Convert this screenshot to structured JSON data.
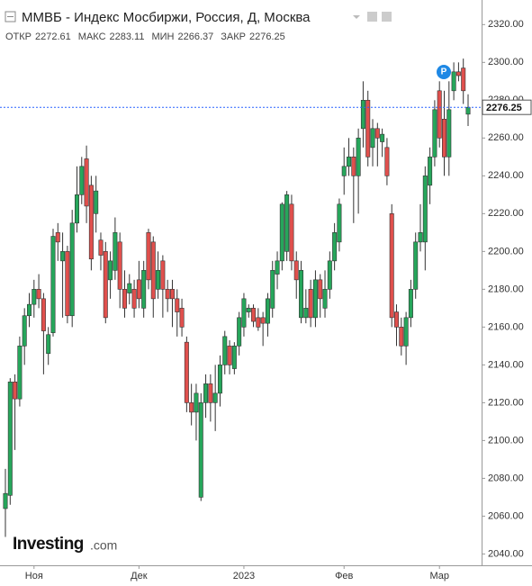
{
  "chart_data": {
    "type": "candlestick",
    "title": "ММВБ - Индекс Мосбиржи, Россия, Д, Москва",
    "header_labels": [
      "ОТКР",
      "МАКС",
      "МИН",
      "ЗАКР"
    ],
    "brand": "Investing",
    "brand_suffix": ".com",
    "up_color": "#26a65b",
    "down_color": "#e0504d",
    "categories": [
      null,
      null,
      null,
      null,
      null,
      null,
      "Ноя",
      null,
      null,
      null,
      null,
      null,
      null,
      null,
      null,
      null,
      null,
      null,
      null,
      null,
      null,
      null,
      null,
      null,
      null,
      null,
      null,
      null,
      "Дек",
      null,
      null,
      null,
      null,
      null,
      null,
      null,
      null,
      null,
      null,
      null,
      null,
      null,
      null,
      null,
      null,
      null,
      null,
      null,
      null,
      null,
      "2023",
      null,
      null,
      null,
      null,
      null,
      null,
      null,
      null,
      null,
      null,
      null,
      null,
      null,
      null,
      null,
      null,
      null,
      null,
      null,
      null,
      "Фев",
      null,
      null,
      null,
      null,
      null,
      null,
      null,
      null,
      null,
      null,
      null,
      null,
      null,
      null,
      null,
      null,
      null,
      null,
      null,
      "Мар",
      null,
      null,
      null,
      null,
      null,
      null
    ],
    "open": [
      2064,
      2071,
      2131,
      2122,
      2150,
      2166,
      2172,
      2180,
      2175,
      2146,
      2157,
      2210,
      2195,
      2200,
      2166,
      2215,
      2230,
      2249,
      2235,
      2220,
      2206,
      2200,
      2185,
      2190,
      2205,
      2180,
      2178,
      2180,
      2185,
      2170,
      2210,
      2205,
      2180,
      2195,
      2180,
      2180,
      2175,
      2170,
      2152,
      2120,
      2115,
      2070,
      2120,
      2130,
      2120,
      2125,
      2140,
      2150,
      2138,
      2150,
      2160,
      2168,
      2170,
      2165,
      2165,
      2162,
      2170,
      2188,
      2195,
      2200,
      2225,
      2195,
      2165,
      2165,
      2180,
      2165,
      2185,
      2170,
      2180,
      2195,
      2205,
      2240,
      2245,
      2250,
      2240,
      2265,
      2280,
      2255,
      2265,
      2258,
      2255,
      2220,
      2168,
      2160,
      2150,
      2165,
      2180,
      2205,
      2205,
      2235,
      2250,
      2285,
      2270,
      2250,
      2285,
      2295,
      2297,
      2272.61
    ],
    "high": [
      2085,
      2133,
      2135,
      2155,
      2170,
      2178,
      2185,
      2188,
      2178,
      2160,
      2212,
      2215,
      2210,
      2203,
      2222,
      2245,
      2250,
      2256,
      2240,
      2240,
      2210,
      2205,
      2200,
      2218,
      2210,
      2190,
      2188,
      2185,
      2195,
      2195,
      2212,
      2208,
      2200,
      2198,
      2185,
      2185,
      2180,
      2175,
      2155,
      2130,
      2130,
      2125,
      2135,
      2135,
      2140,
      2145,
      2158,
      2153,
      2152,
      2168,
      2178,
      2172,
      2172,
      2170,
      2168,
      2178,
      2195,
      2200,
      2226,
      2232,
      2230,
      2200,
      2195,
      2180,
      2185,
      2190,
      2188,
      2190,
      2200,
      2215,
      2228,
      2255,
      2260,
      2255,
      2265,
      2290,
      2285,
      2270,
      2268,
      2265,
      2260,
      2225,
      2172,
      2165,
      2168,
      2185,
      2210,
      2225,
      2245,
      2255,
      2280,
      2290,
      2285,
      2290,
      2300,
      2300,
      2302,
      2283.11
    ],
    "low": [
      2049,
      2066,
      2095,
      2118,
      2140,
      2160,
      2165,
      2170,
      2135,
      2140,
      2155,
      2195,
      2165,
      2162,
      2160,
      2210,
      2225,
      2215,
      2190,
      2210,
      2190,
      2162,
      2175,
      2185,
      2170,
      2165,
      2172,
      2165,
      2170,
      2165,
      2180,
      2165,
      2175,
      2165,
      2168,
      2160,
      2155,
      2155,
      2115,
      2108,
      2100,
      2068,
      2112,
      2110,
      2105,
      2118,
      2135,
      2135,
      2135,
      2145,
      2155,
      2165,
      2160,
      2158,
      2150,
      2155,
      2165,
      2180,
      2190,
      2195,
      2190,
      2175,
      2162,
      2162,
      2160,
      2160,
      2165,
      2165,
      2175,
      2190,
      2200,
      2230,
      2240,
      2215,
      2220,
      2255,
      2245,
      2245,
      2245,
      2250,
      2235,
      2160,
      2150,
      2145,
      2140,
      2160,
      2175,
      2200,
      2190,
      2225,
      2245,
      2255,
      2240,
      2240,
      2280,
      2290,
      2278,
      2266.37
    ],
    "close": [
      2072,
      2131,
      2122,
      2150,
      2166,
      2172,
      2180,
      2175,
      2158,
      2156,
      2208,
      2205,
      2200,
      2166,
      2215,
      2230,
      2245,
      2224,
      2196,
      2232,
      2198,
      2165,
      2195,
      2210,
      2180,
      2170,
      2183,
      2170,
      2175,
      2190,
      2185,
      2175,
      2190,
      2180,
      2175,
      2175,
      2168,
      2160,
      2120,
      2115,
      2125,
      2120,
      2130,
      2120,
      2125,
      2140,
      2155,
      2140,
      2150,
      2165,
      2175,
      2170,
      2163,
      2160,
      2162,
      2175,
      2190,
      2195,
      2225,
      2230,
      2195,
      2185,
      2190,
      2170,
      2165,
      2185,
      2175,
      2180,
      2195,
      2210,
      2225,
      2245,
      2250,
      2240,
      2260,
      2280,
      2250,
      2265,
      2260,
      2262,
      2240,
      2165,
      2160,
      2150,
      2165,
      2180,
      2205,
      2210,
      2240,
      2250,
      2275,
      2260,
      2250,
      2275,
      2295,
      2293,
      2285,
      2276.25
    ],
    "ylim": [
      2034,
      2333
    ],
    "yticks": [
      {
        "value": 2040,
        "label": "2040.00"
      },
      {
        "value": 2060,
        "label": "2060.00"
      },
      {
        "value": 2080,
        "label": "2080.00"
      },
      {
        "value": 2100,
        "label": "2100.00"
      },
      {
        "value": 2120,
        "label": "2120.00"
      },
      {
        "value": 2140,
        "label": "2140.00"
      },
      {
        "value": 2160,
        "label": "2160.00"
      },
      {
        "value": 2180,
        "label": "2180.00"
      },
      {
        "value": 2200,
        "label": "2200.00"
      },
      {
        "value": 2220,
        "label": "2220.00"
      },
      {
        "value": 2240,
        "label": "2240.00"
      },
      {
        "value": 2260,
        "label": "2260.00"
      },
      {
        "value": 2280,
        "label": "2280.00"
      },
      {
        "value": 2300,
        "label": "2300.00"
      },
      {
        "value": 2320,
        "label": "2320.00"
      }
    ],
    "last_price_line_color": "#2962ff"
  }
}
